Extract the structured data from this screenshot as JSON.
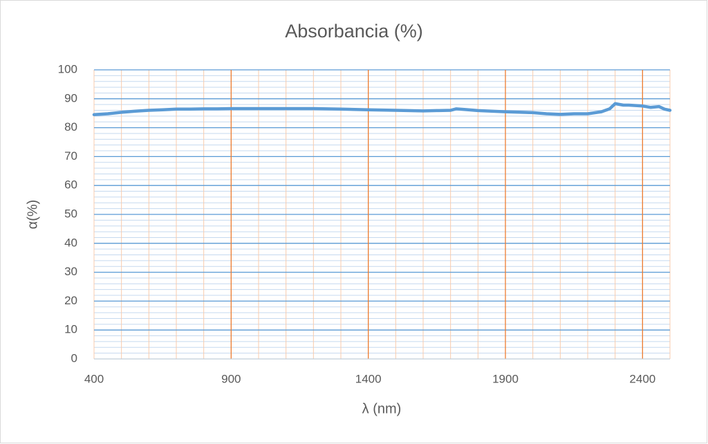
{
  "chart_data": {
    "type": "line",
    "title": "Absorbancia (%)",
    "x_label": "λ (nm)",
    "y_label": "α(%)",
    "x": [
      400,
      450,
      500,
      550,
      600,
      650,
      700,
      750,
      800,
      850,
      900,
      1000,
      1100,
      1200,
      1300,
      1400,
      1500,
      1600,
      1650,
      1700,
      1720,
      1750,
      1800,
      1900,
      2000,
      2050,
      2100,
      2150,
      2200,
      2250,
      2280,
      2300,
      2330,
      2350,
      2400,
      2430,
      2460,
      2480,
      2500
    ],
    "series": [
      {
        "name": "Absorbancia",
        "color": "#5b9bd5",
        "values": [
          84.5,
          84.8,
          85.3,
          85.7,
          86.0,
          86.2,
          86.4,
          86.4,
          86.5,
          86.5,
          86.6,
          86.6,
          86.6,
          86.6,
          86.4,
          86.2,
          86.0,
          85.8,
          85.9,
          86.0,
          86.5,
          86.3,
          85.9,
          85.5,
          85.2,
          84.8,
          84.6,
          84.8,
          84.8,
          85.5,
          86.5,
          88.3,
          87.8,
          87.8,
          87.5,
          87.0,
          87.3,
          86.4,
          86.0
        ]
      }
    ],
    "xlim": [
      400,
      2500
    ],
    "xticks": [
      400,
      900,
      1400,
      1900,
      2400
    ],
    "ylim": [
      0,
      100
    ],
    "yticks": [
      0,
      10,
      20,
      30,
      40,
      50,
      60,
      70,
      80,
      90,
      100
    ],
    "grid": true,
    "minor_grid": true
  }
}
